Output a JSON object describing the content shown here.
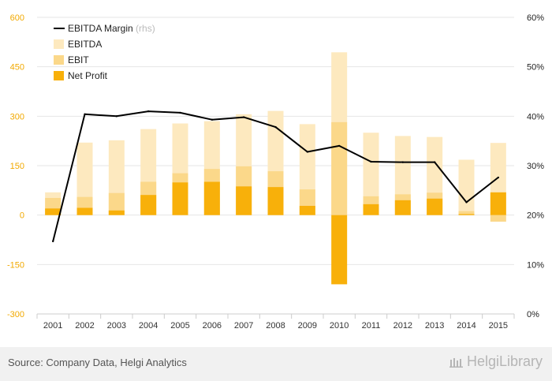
{
  "chart_data": {
    "type": "bar",
    "categories": [
      "2001",
      "2002",
      "2003",
      "2004",
      "2005",
      "2006",
      "2007",
      "2008",
      "2009",
      "2010",
      "2011",
      "2012",
      "2013",
      "2014",
      "2015"
    ],
    "series": [
      {
        "name": "EBITDA Margin",
        "suffix": "(rhs)",
        "type": "line",
        "axis": "right",
        "color": "#000000",
        "values": [
          14.7,
          40.4,
          40.0,
          41.0,
          40.7,
          39.3,
          39.8,
          37.8,
          32.8,
          34.0,
          30.8,
          30.7,
          30.7,
          22.6,
          27.6
        ]
      },
      {
        "name": "EBITDA",
        "type": "bar",
        "axis": "left",
        "color": "#fde9bf",
        "values": [
          69,
          220,
          227,
          261,
          278,
          285,
          306,
          316,
          276,
          494,
          250,
          240,
          237,
          168,
          219
        ]
      },
      {
        "name": "EBIT",
        "type": "bar",
        "axis": "left",
        "color": "#fbd88a",
        "values": [
          52,
          55,
          67,
          101,
          127,
          140,
          148,
          133,
          78,
          282,
          57,
          63,
          68,
          12,
          -20
        ]
      },
      {
        "name": "Net Profit",
        "type": "bar",
        "axis": "left",
        "color": "#f8b00a",
        "values": [
          20,
          22,
          14,
          61,
          99,
          101,
          87,
          85,
          28,
          -210,
          33,
          45,
          50,
          3,
          69
        ]
      }
    ],
    "y_left": {
      "min": -300,
      "max": 600,
      "ticks": [
        -300,
        -150,
        0,
        150,
        300,
        450,
        600
      ],
      "tick_labels": [
        "-300",
        "-150",
        "0",
        "150",
        "300",
        "450",
        "600"
      ]
    },
    "y_right": {
      "min": 0,
      "max": 60,
      "ticks": [
        0,
        10,
        20,
        30,
        40,
        50,
        60
      ],
      "tick_labels": [
        "0%",
        "10%",
        "20%",
        "30%",
        "40%",
        "50%",
        "60%"
      ]
    },
    "grid": true,
    "legend_position": "top-left",
    "colors": {
      "left_tick": "#f2a900",
      "right_tick": "#222222",
      "grid": "#e6e6e6",
      "axis": "#cccccc"
    }
  },
  "footer": {
    "source": "Source: Company Data, Helgi Analytics",
    "brand": "HelgiLibrary"
  }
}
